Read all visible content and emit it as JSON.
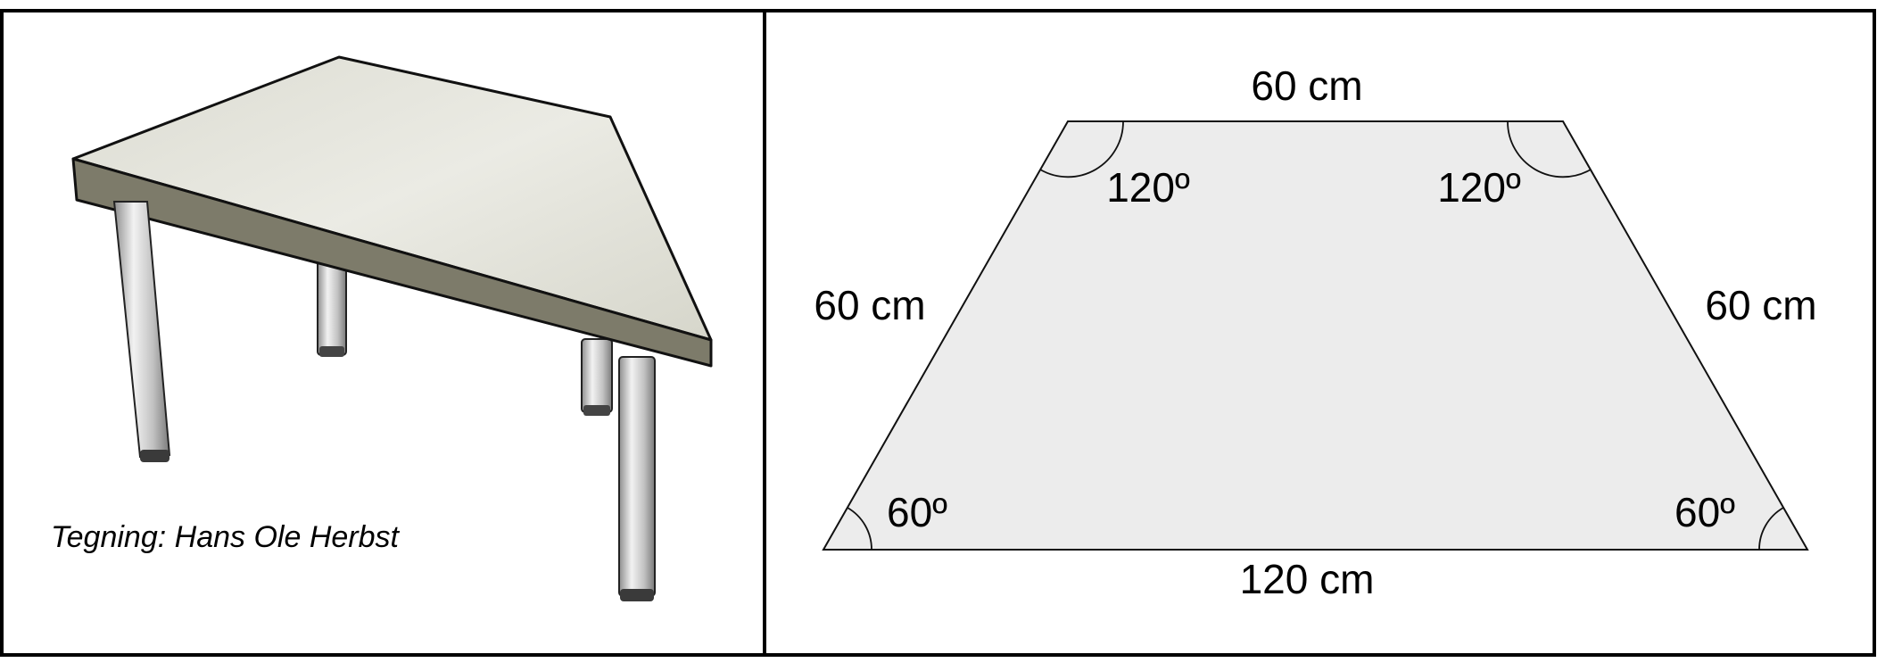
{
  "credit": "Tegning: Hans Ole Herbst",
  "trapezoid": {
    "top_side": "60 cm",
    "bottom_side": "120 cm",
    "left_side": "60 cm",
    "right_side": "60 cm",
    "angle_top_left": "120º",
    "angle_top_right": "120º",
    "angle_bottom_left": "60º",
    "angle_bottom_right": "60º"
  },
  "colors": {
    "border": "#000000",
    "trapezoid_fill": "#ececec",
    "tabletop": "#e3e3da",
    "table_edge": "#7d7b6a",
    "leg": "#c6c6c6"
  }
}
